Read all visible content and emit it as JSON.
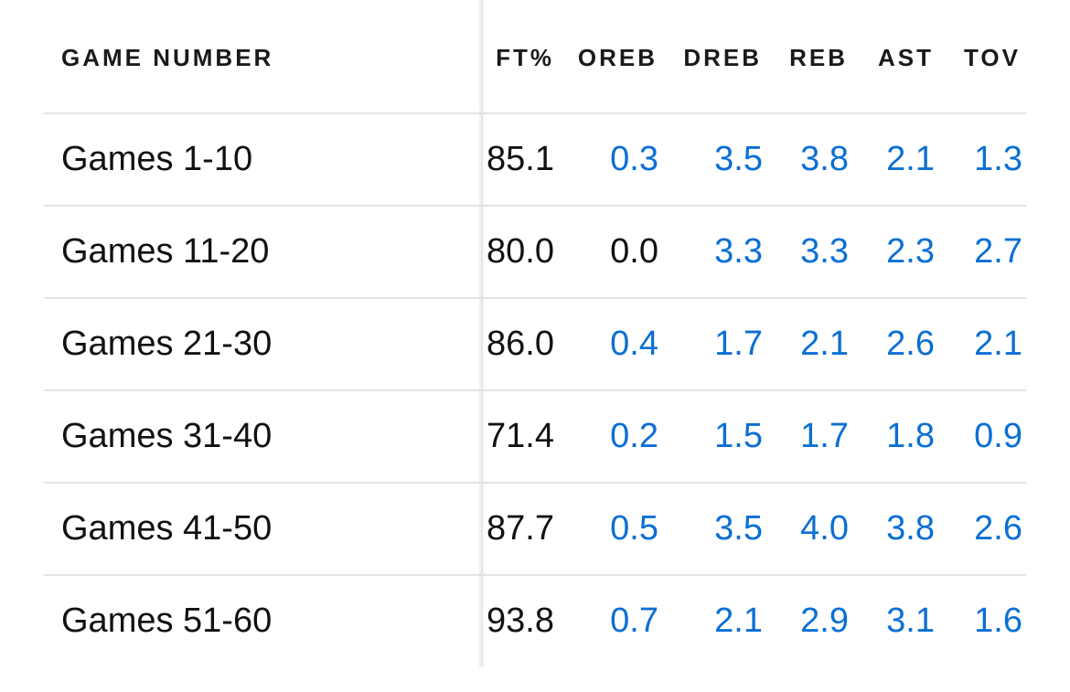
{
  "table": {
    "headers": {
      "game_number": "GAME NUMBER",
      "ft_pct": "FT%",
      "oreb": "OREB",
      "dreb": "DREB",
      "reb": "REB",
      "ast": "AST",
      "tov": "TOV"
    },
    "rows": [
      {
        "label": "Games 1-10",
        "ft_pct": "85.1",
        "oreb": "0.3",
        "dreb": "3.5",
        "reb": "3.8",
        "ast": "2.1",
        "tov": "1.3"
      },
      {
        "label": "Games 11-20",
        "ft_pct": "80.0",
        "oreb": "0.0",
        "dreb": "3.3",
        "reb": "3.3",
        "ast": "2.3",
        "tov": "2.7"
      },
      {
        "label": "Games 21-30",
        "ft_pct": "86.0",
        "oreb": "0.4",
        "dreb": "1.7",
        "reb": "2.1",
        "ast": "2.6",
        "tov": "2.1"
      },
      {
        "label": "Games 31-40",
        "ft_pct": "71.4",
        "oreb": "0.2",
        "dreb": "1.5",
        "reb": "1.7",
        "ast": "1.8",
        "tov": "0.9"
      },
      {
        "label": "Games 41-50",
        "ft_pct": "87.7",
        "oreb": "0.5",
        "dreb": "3.5",
        "reb": "4.0",
        "ast": "3.8",
        "tov": "2.6"
      },
      {
        "label": "Games 51-60",
        "ft_pct": "93.8",
        "oreb": "0.7",
        "dreb": "2.1",
        "reb": "2.9",
        "ast": "3.1",
        "tov": "1.6"
      }
    ]
  },
  "colors": {
    "link": "#0b6fd4",
    "text": "#111111",
    "divider": "#e4e4e4"
  }
}
